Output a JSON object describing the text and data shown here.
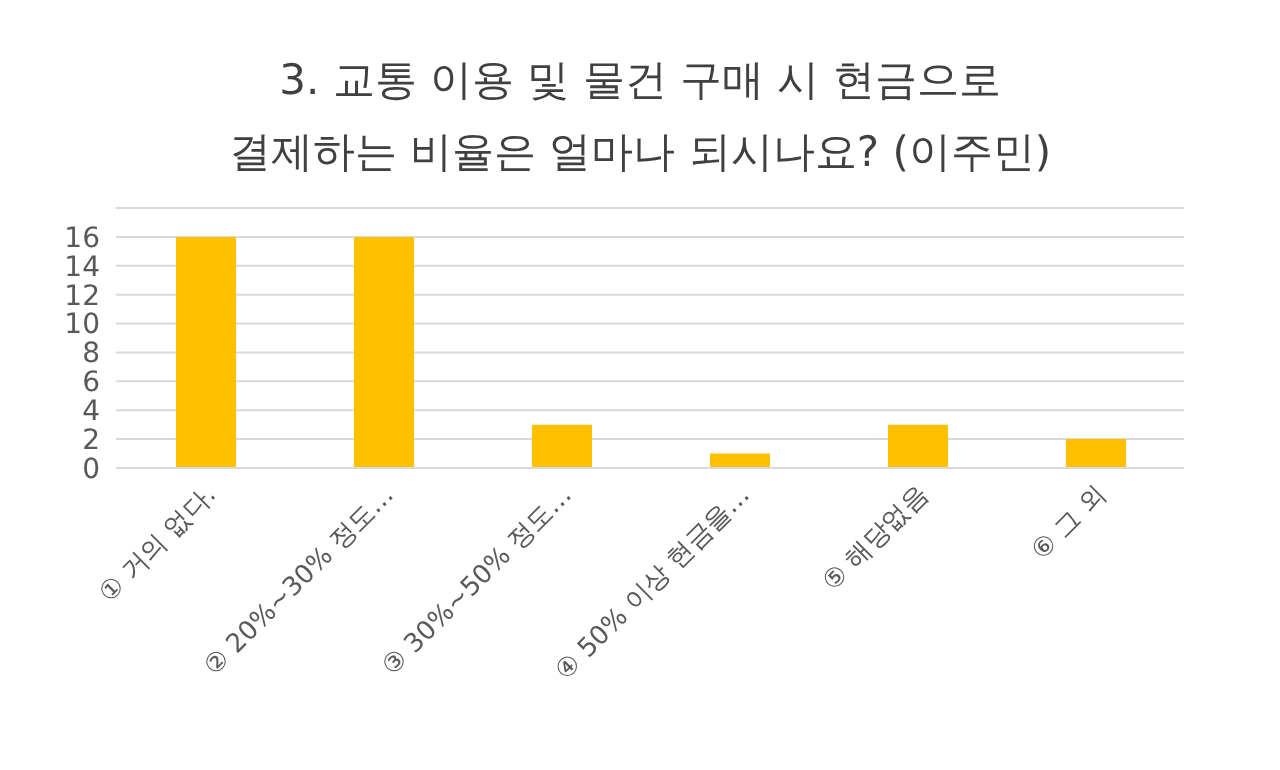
{
  "chart_data": {
    "type": "bar",
    "title": "3. 교통 이용 및 물건 구매 시 현금으로\n결제하는 비율은 얼마나 되시나요? (이주민)",
    "categories": [
      "① 거의 없다.",
      "② 20%~30% 정도…",
      "③ 30%~50% 정도…",
      "④ 50% 이상 현금을…",
      "⑤ 해당없음",
      "⑥ 그 외"
    ],
    "values": [
      16,
      16,
      3,
      1,
      3,
      2
    ],
    "color": "#ffc000",
    "ylim": [
      0,
      18
    ],
    "yticks": [
      0,
      2,
      4,
      6,
      8,
      10,
      12,
      14,
      16,
      {
        "value": 18,
        "label": null
      }
    ],
    "grid": "y"
  }
}
